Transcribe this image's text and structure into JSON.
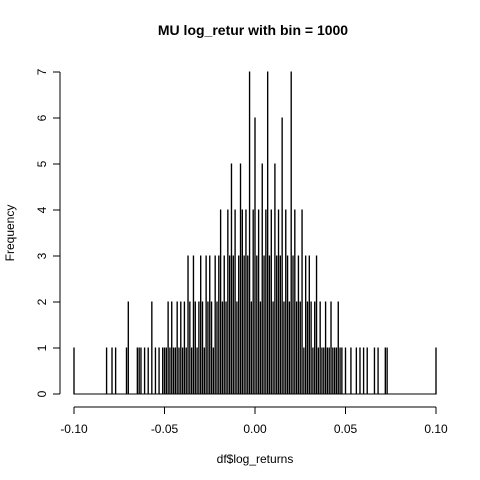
{
  "chart_data": {
    "type": "bar",
    "title": "MU log_retur with bin = 1000",
    "xlabel": "df$log_returns",
    "ylabel": "Frequency",
    "xlim": [
      -0.1,
      0.1
    ],
    "ylim": [
      0,
      7
    ],
    "x_ticks": [
      "-0.10",
      "-0.05",
      "0.00",
      "0.05",
      "0.10"
    ],
    "x_tick_values": [
      -0.1,
      -0.05,
      0,
      0.05,
      0.1
    ],
    "y_ticks": [
      "0",
      "1",
      "2",
      "3",
      "4",
      "5",
      "6",
      "7"
    ],
    "y_tick_values": [
      0,
      1,
      2,
      3,
      4,
      5,
      6,
      7
    ],
    "grid": false,
    "bin_width": 0.0002,
    "bars": [
      {
        "x": -0.1,
        "y": 1
      },
      {
        "x": -0.082,
        "y": 1
      },
      {
        "x": -0.079,
        "y": 1
      },
      {
        "x": -0.077,
        "y": 1
      },
      {
        "x": -0.071,
        "y": 1
      },
      {
        "x": -0.07,
        "y": 2
      },
      {
        "x": -0.065,
        "y": 1
      },
      {
        "x": -0.064,
        "y": 1
      },
      {
        "x": -0.063,
        "y": 1
      },
      {
        "x": -0.061,
        "y": 1
      },
      {
        "x": -0.059,
        "y": 1
      },
      {
        "x": -0.057,
        "y": 2
      },
      {
        "x": -0.055,
        "y": 1
      },
      {
        "x": -0.053,
        "y": 1
      },
      {
        "x": -0.051,
        "y": 1
      },
      {
        "x": -0.05,
        "y": 1
      },
      {
        "x": -0.049,
        "y": 1
      },
      {
        "x": -0.048,
        "y": 2
      },
      {
        "x": -0.047,
        "y": 1
      },
      {
        "x": -0.046,
        "y": 2
      },
      {
        "x": -0.045,
        "y": 1
      },
      {
        "x": -0.044,
        "y": 1
      },
      {
        "x": -0.043,
        "y": 2
      },
      {
        "x": -0.042,
        "y": 1
      },
      {
        "x": -0.041,
        "y": 2
      },
      {
        "x": -0.04,
        "y": 1
      },
      {
        "x": -0.039,
        "y": 2
      },
      {
        "x": -0.038,
        "y": 1
      },
      {
        "x": -0.037,
        "y": 3
      },
      {
        "x": -0.036,
        "y": 2
      },
      {
        "x": -0.035,
        "y": 1
      },
      {
        "x": -0.034,
        "y": 3
      },
      {
        "x": -0.033,
        "y": 2
      },
      {
        "x": -0.032,
        "y": 1
      },
      {
        "x": -0.031,
        "y": 2
      },
      {
        "x": -0.03,
        "y": 3
      },
      {
        "x": -0.029,
        "y": 2
      },
      {
        "x": -0.028,
        "y": 1
      },
      {
        "x": -0.027,
        "y": 3
      },
      {
        "x": -0.026,
        "y": 2
      },
      {
        "x": -0.025,
        "y": 3
      },
      {
        "x": -0.024,
        "y": 2
      },
      {
        "x": -0.023,
        "y": 1
      },
      {
        "x": -0.022,
        "y": 3
      },
      {
        "x": -0.021,
        "y": 2
      },
      {
        "x": -0.02,
        "y": 3
      },
      {
        "x": -0.019,
        "y": 4
      },
      {
        "x": -0.018,
        "y": 2
      },
      {
        "x": -0.017,
        "y": 3
      },
      {
        "x": -0.016,
        "y": 2
      },
      {
        "x": -0.015,
        "y": 4
      },
      {
        "x": -0.014,
        "y": 3
      },
      {
        "x": -0.013,
        "y": 5
      },
      {
        "x": -0.012,
        "y": 3
      },
      {
        "x": -0.011,
        "y": 4
      },
      {
        "x": -0.01,
        "y": 2
      },
      {
        "x": -0.009,
        "y": 3
      },
      {
        "x": -0.008,
        "y": 5
      },
      {
        "x": -0.007,
        "y": 4
      },
      {
        "x": -0.006,
        "y": 3
      },
      {
        "x": -0.005,
        "y": 4
      },
      {
        "x": -0.004,
        "y": 3
      },
      {
        "x": -0.003,
        "y": 7
      },
      {
        "x": -0.002,
        "y": 2
      },
      {
        "x": -0.001,
        "y": 4
      },
      {
        "x": 0,
        "y": 6
      },
      {
        "x": 0.001,
        "y": 3
      },
      {
        "x": 0.002,
        "y": 4
      },
      {
        "x": 0.003,
        "y": 2
      },
      {
        "x": 0.004,
        "y": 5
      },
      {
        "x": 0.005,
        "y": 3
      },
      {
        "x": 0.006,
        "y": 4
      },
      {
        "x": 0.007,
        "y": 7
      },
      {
        "x": 0.008,
        "y": 3
      },
      {
        "x": 0.009,
        "y": 4
      },
      {
        "x": 0.01,
        "y": 2
      },
      {
        "x": 0.011,
        "y": 5
      },
      {
        "x": 0.012,
        "y": 3
      },
      {
        "x": 0.013,
        "y": 4
      },
      {
        "x": 0.014,
        "y": 3
      },
      {
        "x": 0.015,
        "y": 6
      },
      {
        "x": 0.016,
        "y": 2
      },
      {
        "x": 0.017,
        "y": 4
      },
      {
        "x": 0.018,
        "y": 3
      },
      {
        "x": 0.019,
        "y": 2
      },
      {
        "x": 0.02,
        "y": 7
      },
      {
        "x": 0.021,
        "y": 3
      },
      {
        "x": 0.022,
        "y": 4
      },
      {
        "x": 0.023,
        "y": 2
      },
      {
        "x": 0.024,
        "y": 3
      },
      {
        "x": 0.025,
        "y": 2
      },
      {
        "x": 0.026,
        "y": 4
      },
      {
        "x": 0.027,
        "y": 1
      },
      {
        "x": 0.028,
        "y": 3
      },
      {
        "x": 0.029,
        "y": 2
      },
      {
        "x": 0.03,
        "y": 3
      },
      {
        "x": 0.031,
        "y": 2
      },
      {
        "x": 0.032,
        "y": 1
      },
      {
        "x": 0.033,
        "y": 2
      },
      {
        "x": 0.034,
        "y": 3
      },
      {
        "x": 0.035,
        "y": 1
      },
      {
        "x": 0.036,
        "y": 2
      },
      {
        "x": 0.037,
        "y": 1
      },
      {
        "x": 0.038,
        "y": 1
      },
      {
        "x": 0.039,
        "y": 2
      },
      {
        "x": 0.04,
        "y": 1
      },
      {
        "x": 0.041,
        "y": 1
      },
      {
        "x": 0.042,
        "y": 2
      },
      {
        "x": 0.043,
        "y": 1
      },
      {
        "x": 0.044,
        "y": 1
      },
      {
        "x": 0.045,
        "y": 1
      },
      {
        "x": 0.046,
        "y": 2
      },
      {
        "x": 0.047,
        "y": 1
      },
      {
        "x": 0.048,
        "y": 1
      },
      {
        "x": 0.05,
        "y": 1
      },
      {
        "x": 0.053,
        "y": 1
      },
      {
        "x": 0.056,
        "y": 1
      },
      {
        "x": 0.058,
        "y": 1
      },
      {
        "x": 0.06,
        "y": 1
      },
      {
        "x": 0.062,
        "y": 1
      },
      {
        "x": 0.066,
        "y": 1
      },
      {
        "x": 0.068,
        "y": 1
      },
      {
        "x": 0.072,
        "y": 1
      },
      {
        "x": 0.073,
        "y": 1
      },
      {
        "x": 0.1,
        "y": 1
      }
    ]
  }
}
